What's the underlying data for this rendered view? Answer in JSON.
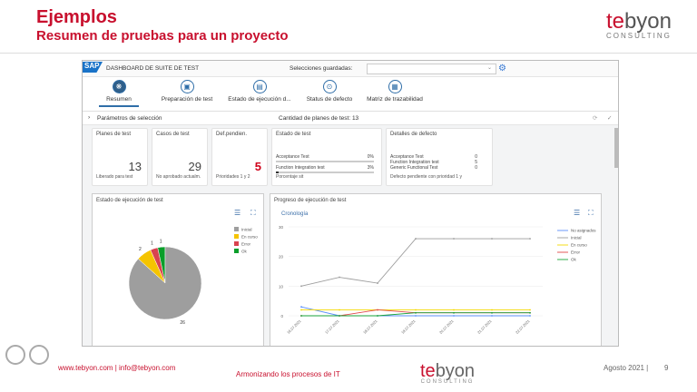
{
  "slide": {
    "title": "Ejemplos",
    "subtitle": "Resumen de pruebas para un proyecto",
    "logo_text": "tebyon",
    "logo_sub": "CONSULTING"
  },
  "app": {
    "brand": "SAP",
    "title": "DASHBOARD DE SUITE DE TEST",
    "saved_label": "Selecciones guardadas:",
    "saved_value": "",
    "tabs": [
      {
        "label": "Resumen",
        "icon": "summary-icon",
        "active": true
      },
      {
        "label": "Preparación de test",
        "icon": "prep-icon"
      },
      {
        "label": "Estado de ejecución d...",
        "icon": "clipboard-icon"
      },
      {
        "label": "Status de defecto",
        "icon": "defect-icon"
      },
      {
        "label": "Matriz de trazabilidad",
        "icon": "matrix-icon"
      }
    ],
    "params_label": "Parámetros de selección",
    "plan_count": "Cantidad de planes de test: 13",
    "tiles": [
      {
        "title": "Planes de test",
        "value": "13",
        "footer": "Liberado para test"
      },
      {
        "title": "Casos de test",
        "value": "29",
        "footer": "No aprobado actualm."
      },
      {
        "title": "Def.pendien.",
        "value": "5",
        "footer": "Prioridades 1 y 2",
        "color": "#d0021b"
      }
    ],
    "estado": {
      "title": "Estado de test",
      "rows": [
        {
          "label": "Acceptance Test",
          "value": "0%"
        },
        {
          "label": "Function Integration test",
          "value": "3%"
        }
      ],
      "footer": "Porcentaje sit"
    },
    "detalles": {
      "title": "Detalles de defecto",
      "rows": [
        {
          "label": "Acceptance Test",
          "value": "0"
        },
        {
          "label": "Function Integration test",
          "value": "5"
        },
        {
          "label": "Generic Functional Test",
          "value": "0"
        }
      ],
      "footer": "Defecto pendiente con prioridad 1 y"
    }
  },
  "chart_data": [
    {
      "type": "pie",
      "title": "Estado de ejecución de test",
      "legend": "top-right",
      "slices": [
        {
          "name": "Inicial",
          "value": 26,
          "color": "#9e9e9e"
        },
        {
          "name": "En curso",
          "value": 2,
          "color": "#f5c400"
        },
        {
          "name": "Error",
          "value": 1,
          "color": "#d9434f"
        },
        {
          "name": "Ok",
          "value": 1,
          "color": "#0a9e2a"
        }
      ]
    },
    {
      "type": "line",
      "title": "Progreso de ejecución de test",
      "tab": "Cronología",
      "legend": "right",
      "ylim": [
        0,
        30
      ],
      "yticks": [
        0,
        10,
        20,
        30
      ],
      "x": [
        "16.07.2021",
        "17.07.2021",
        "18.07.2021",
        "19.07.2021",
        "20.07.2021",
        "21.07.2021",
        "22.07.2021"
      ],
      "series": [
        {
          "name": "No asignados",
          "color": "#5b8ff9",
          "values": [
            3,
            0,
            0,
            0,
            0,
            0,
            0
          ]
        },
        {
          "name": "Inicial",
          "color": "#9e9e9e",
          "values": [
            10,
            13,
            11,
            26,
            26,
            26,
            26
          ]
        },
        {
          "name": "En curso",
          "color": "#f5d800",
          "values": [
            2,
            2,
            2,
            2,
            2,
            2,
            2
          ]
        },
        {
          "name": "Error",
          "color": "#e04848",
          "values": [
            0,
            0,
            2,
            1,
            1,
            1,
            1
          ]
        },
        {
          "name": "Ok",
          "color": "#1aa33a",
          "values": [
            0,
            0,
            0,
            1,
            1,
            1,
            1
          ]
        }
      ]
    }
  ],
  "footer": {
    "url": "www.tebyon.com | info@tebyon.com",
    "tagline": "Armonizando los procesos de IT",
    "date": "Agosto 2021 |",
    "page": "9"
  }
}
